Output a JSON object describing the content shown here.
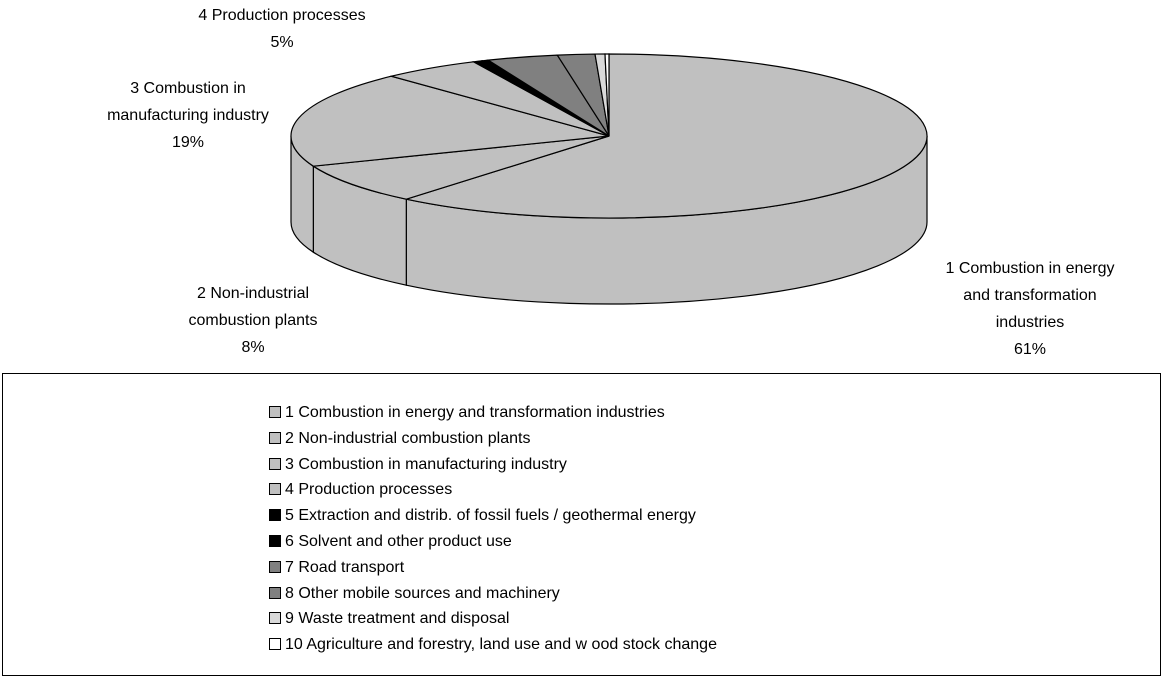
{
  "chart_data": {
    "type": "pie3d",
    "categories": [
      "1 Combustion in energy and transformation industries",
      "2 Non-industrial combustion plants",
      "3 Combustion in manufacturing industry",
      "4 Production processes",
      "5 Extraction and distrib. of fossil fuels / geothermal energy",
      "6 Solvent and other product use",
      "7 Road transport",
      "8 Other mobile sources and machinery",
      "9 Waste treatment and disposal",
      "10 Agriculture and forestry, land use and w ood stock change"
    ],
    "values": [
      61,
      8,
      19,
      5,
      0.5,
      0.3,
      3.6,
      1.9,
      0.5,
      0.2
    ],
    "value_labels": [
      "61%",
      "8%",
      "19%",
      "5%",
      null,
      null,
      null,
      null,
      null,
      null
    ],
    "colors": [
      "#c0c0c0",
      "#c0c0c0",
      "#c0c0c0",
      "#c0c0c0",
      "#000000",
      "#000000",
      "#808080",
      "#808080",
      "#d9d9d9",
      "#ffffff"
    ],
    "legend": "bottom"
  }
}
